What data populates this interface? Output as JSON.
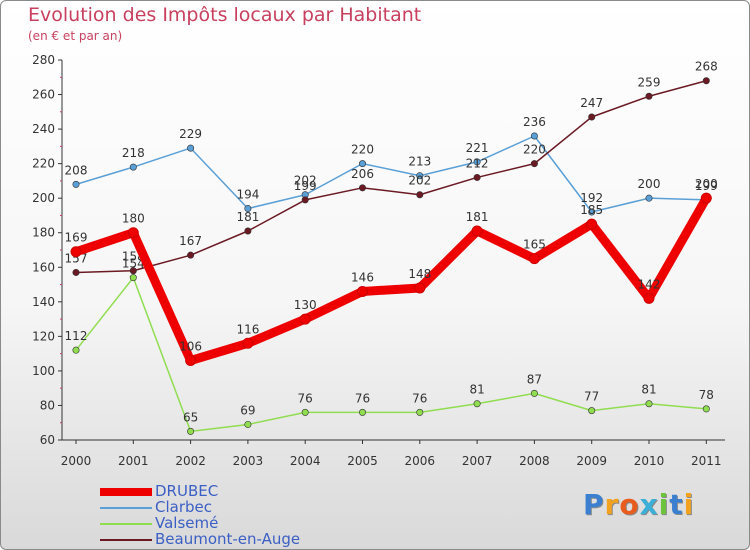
{
  "title": "Evolution des Impôts locaux par Habitant",
  "subtitle": "(en € et par an)",
  "logo": {
    "text": "Proxiti"
  },
  "chart_data": {
    "type": "line",
    "title": "Evolution des Impôts locaux par Habitant",
    "subtitle": "(en € et par an)",
    "xlabel": "",
    "ylabel": "",
    "ylim": [
      60,
      280
    ],
    "yticks": [
      "60",
      "80",
      "100",
      "120",
      "140",
      "160",
      "180",
      "200",
      "220",
      "240",
      "260",
      "280"
    ],
    "categories": [
      "2000",
      "2001",
      "2002",
      "2003",
      "2004",
      "2005",
      "2006",
      "2007",
      "2008",
      "2009",
      "2010",
      "2011"
    ],
    "grid": false,
    "legend_position": "bottom-left",
    "series": [
      {
        "name": "Clarbec",
        "color": "#5a9fd6",
        "values": [
          208,
          218,
          229,
          194,
          202,
          220,
          213,
          221,
          236,
          192,
          200,
          199
        ]
      },
      {
        "name": "Valsemé",
        "color": "#90dd50",
        "values": [
          112,
          154,
          65,
          69,
          76,
          76,
          76,
          81,
          87,
          77,
          81,
          78
        ]
      },
      {
        "name": "Beaumont-en-Auge",
        "color": "#6b1a24",
        "values": [
          157,
          158,
          167,
          181,
          199,
          206,
          202,
          212,
          220,
          247,
          259,
          268
        ]
      },
      {
        "name": "DRUBEC",
        "color": "#ee0000",
        "values": [
          169,
          180,
          106,
          116,
          130,
          146,
          148,
          181,
          165,
          185,
          142,
          200
        ]
      }
    ],
    "legend": [
      "DRUBEC",
      "Clarbec",
      "Valsemé",
      "Beaumont-en-Auge"
    ]
  }
}
